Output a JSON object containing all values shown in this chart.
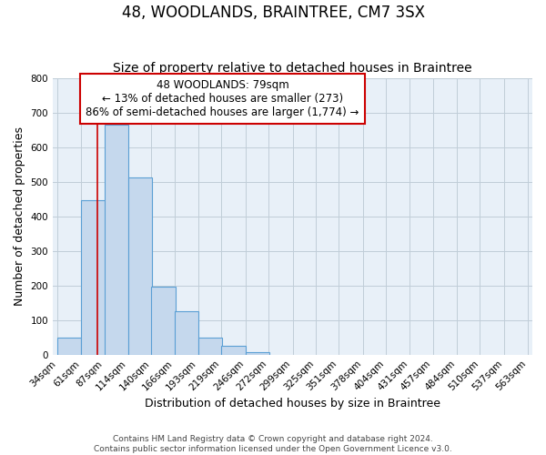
{
  "title": "48, WOODLANDS, BRAINTREE, CM7 3SX",
  "subtitle": "Size of property relative to detached houses in Braintree",
  "xlabel": "Distribution of detached houses by size in Braintree",
  "ylabel": "Number of detached properties",
  "bar_left_edges": [
    34,
    61,
    87,
    114,
    140,
    166,
    193,
    219,
    246,
    272,
    299,
    325,
    351,
    378,
    404,
    431,
    457,
    484,
    510,
    537
  ],
  "bar_heights": [
    50,
    447,
    665,
    513,
    196,
    127,
    49,
    26,
    8,
    0,
    0,
    0,
    0,
    0,
    0,
    0,
    0,
    0,
    0,
    0
  ],
  "bin_width": 27,
  "bar_color": "#c5d8ed",
  "bar_edge_color": "#5a9fd4",
  "ylim": [
    0,
    800
  ],
  "yticks": [
    0,
    100,
    200,
    300,
    400,
    500,
    600,
    700,
    800
  ],
  "xtick_labels": [
    "34sqm",
    "61sqm",
    "87sqm",
    "114sqm",
    "140sqm",
    "166sqm",
    "193sqm",
    "219sqm",
    "246sqm",
    "272sqm",
    "299sqm",
    "325sqm",
    "351sqm",
    "378sqm",
    "404sqm",
    "431sqm",
    "457sqm",
    "484sqm",
    "510sqm",
    "537sqm",
    "563sqm"
  ],
  "property_line_x": 79,
  "property_line_color": "#cc0000",
  "annotation_title": "48 WOODLANDS: 79sqm",
  "annotation_line1": "← 13% of detached houses are smaller (273)",
  "annotation_line2": "86% of semi-detached houses are larger (1,774) →",
  "footer1": "Contains HM Land Registry data © Crown copyright and database right 2024.",
  "footer2": "Contains public sector information licensed under the Open Government Licence v3.0.",
  "background_color": "#ffffff",
  "plot_bg_color": "#e8f0f8",
  "grid_color": "#c0cdd8",
  "title_fontsize": 12,
  "subtitle_fontsize": 10,
  "axis_label_fontsize": 9,
  "tick_fontsize": 7.5,
  "annotation_fontsize": 8.5,
  "footer_fontsize": 6.5
}
